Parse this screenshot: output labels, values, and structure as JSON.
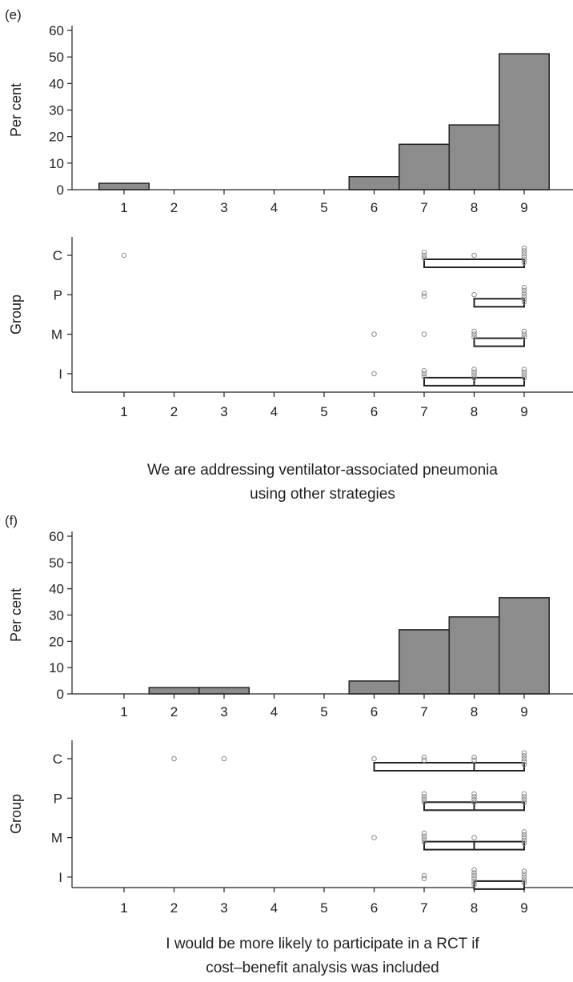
{
  "chart_data": [
    {
      "panel_label": "(e)",
      "caption": [
        "We are addressing ventilator-associated pneumonia",
        "using other strategies"
      ],
      "histogram": {
        "type": "bar",
        "ylabel": "Per cent",
        "categories": [
          "1",
          "2",
          "3",
          "4",
          "5",
          "6",
          "7",
          "8",
          "9"
        ],
        "values": [
          2.4,
          0,
          0,
          0,
          0,
          4.9,
          17.1,
          24.4,
          51.2
        ],
        "ylim": [
          0,
          60
        ],
        "yticks": [
          0,
          10,
          20,
          30,
          40,
          50,
          60
        ],
        "bar_color": "#8c8c8c"
      },
      "boxplot": {
        "type": "box",
        "ylabel": "Group",
        "groups": [
          "C",
          "P",
          "M",
          "I"
        ],
        "xticks": [
          "1",
          "2",
          "3",
          "4",
          "5",
          "6",
          "7",
          "8",
          "9"
        ],
        "boxes": [
          {
            "group": "C",
            "q1": 7,
            "median": 9,
            "q3": 9
          },
          {
            "group": "P",
            "q1": 8,
            "median": 9,
            "q3": 9
          },
          {
            "group": "M",
            "q1": 8,
            "median": 9,
            "q3": 9
          },
          {
            "group": "I",
            "q1": 7,
            "median": 8,
            "q3": 9
          }
        ],
        "points": [
          {
            "group": "C",
            "x": 1,
            "n": 1
          },
          {
            "group": "C",
            "x": 7,
            "n": 3
          },
          {
            "group": "C",
            "x": 8,
            "n": 1
          },
          {
            "group": "C",
            "x": 9,
            "n": 6
          },
          {
            "group": "P",
            "x": 7,
            "n": 2
          },
          {
            "group": "P",
            "x": 8,
            "n": 1
          },
          {
            "group": "P",
            "x": 9,
            "n": 6
          },
          {
            "group": "M",
            "x": 6,
            "n": 1
          },
          {
            "group": "M",
            "x": 7,
            "n": 1
          },
          {
            "group": "M",
            "x": 8,
            "n": 3
          },
          {
            "group": "M",
            "x": 9,
            "n": 3
          },
          {
            "group": "I",
            "x": 6,
            "n": 1
          },
          {
            "group": "I",
            "x": 7,
            "n": 3
          },
          {
            "group": "I",
            "x": 8,
            "n": 4
          },
          {
            "group": "I",
            "x": 9,
            "n": 4
          }
        ]
      }
    },
    {
      "panel_label": "(f)",
      "caption": [
        "I would be more likely to participate in a RCT if",
        "cost–benefit analysis was included"
      ],
      "histogram": {
        "type": "bar",
        "ylabel": "Per cent",
        "categories": [
          "1",
          "2",
          "3",
          "4",
          "5",
          "6",
          "7",
          "8",
          "9"
        ],
        "values": [
          0,
          2.4,
          2.4,
          0,
          0,
          4.9,
          24.4,
          29.3,
          36.6
        ],
        "ylim": [
          0,
          60
        ],
        "yticks": [
          0,
          10,
          20,
          30,
          40,
          50,
          60
        ],
        "bar_color": "#8c8c8c"
      },
      "boxplot": {
        "type": "box",
        "ylabel": "Group",
        "groups": [
          "C",
          "P",
          "M",
          "I"
        ],
        "xticks": [
          "1",
          "2",
          "3",
          "4",
          "5",
          "6",
          "7",
          "8",
          "9"
        ],
        "boxes": [
          {
            "group": "C",
            "q1": 6,
            "median": 8,
            "q3": 9
          },
          {
            "group": "P",
            "q1": 7,
            "median": 8,
            "q3": 9
          },
          {
            "group": "M",
            "q1": 7,
            "median": 8,
            "q3": 9
          },
          {
            "group": "I",
            "q1": 8,
            "median": 9,
            "q3": 9
          }
        ],
        "points": [
          {
            "group": "C",
            "x": 2,
            "n": 1
          },
          {
            "group": "C",
            "x": 3,
            "n": 1
          },
          {
            "group": "C",
            "x": 6,
            "n": 1
          },
          {
            "group": "C",
            "x": 7,
            "n": 2
          },
          {
            "group": "C",
            "x": 8,
            "n": 2
          },
          {
            "group": "C",
            "x": 9,
            "n": 5
          },
          {
            "group": "P",
            "x": 7,
            "n": 4
          },
          {
            "group": "P",
            "x": 8,
            "n": 4
          },
          {
            "group": "P",
            "x": 9,
            "n": 4
          },
          {
            "group": "M",
            "x": 6,
            "n": 1
          },
          {
            "group": "M",
            "x": 7,
            "n": 4
          },
          {
            "group": "M",
            "x": 8,
            "n": 1
          },
          {
            "group": "M",
            "x": 9,
            "n": 5
          },
          {
            "group": "I",
            "x": 7,
            "n": 2
          },
          {
            "group": "I",
            "x": 8,
            "n": 6
          },
          {
            "group": "I",
            "x": 9,
            "n": 5
          }
        ]
      }
    }
  ]
}
